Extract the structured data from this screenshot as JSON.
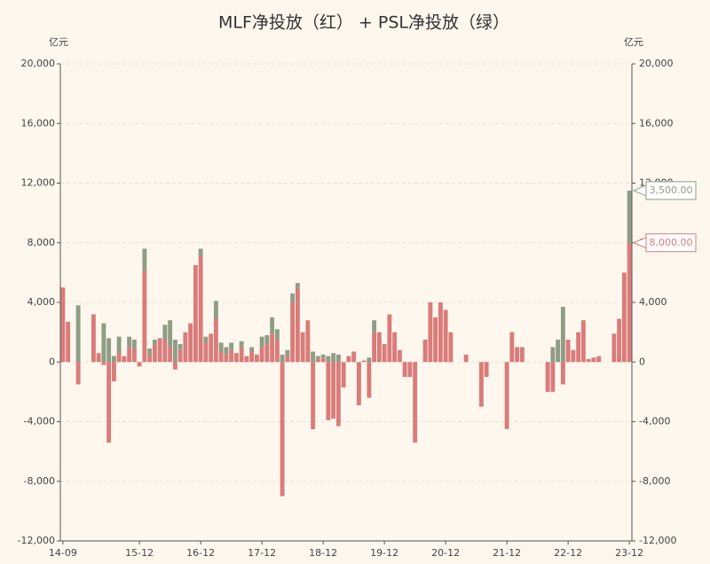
{
  "chart_data": {
    "type": "bar",
    "stacked": true,
    "title": "MLF净投放（红） + PSL净投放（绿）",
    "y_label": "亿元",
    "y2_label": "亿元",
    "categories": [
      "14-09",
      null,
      null,
      null,
      null,
      null,
      null,
      null,
      null,
      null,
      null,
      null,
      null,
      null,
      null,
      "15-12",
      null,
      null,
      null,
      null,
      null,
      null,
      null,
      null,
      null,
      null,
      null,
      "16-12",
      null,
      null,
      null,
      null,
      null,
      null,
      null,
      null,
      null,
      null,
      null,
      "17-12",
      null,
      null,
      null,
      null,
      null,
      null,
      null,
      null,
      null,
      null,
      null,
      "18-12",
      null,
      null,
      null,
      null,
      null,
      null,
      null,
      null,
      null,
      null,
      null,
      "19-12",
      null,
      null,
      null,
      null,
      null,
      null,
      null,
      null,
      null,
      null,
      null,
      "20-12",
      null,
      null,
      null,
      null,
      null,
      null,
      null,
      null,
      null,
      null,
      null,
      "21-12",
      null,
      null,
      null,
      null,
      null,
      null,
      null,
      null,
      null,
      null,
      null,
      "22-12",
      null,
      null,
      null,
      null,
      null,
      null,
      null,
      null,
      null,
      null,
      null,
      "23-12"
    ],
    "series": [
      {
        "name": "MLF净投放",
        "color": "#d97c7a",
        "values": [
          5000,
          2700,
          0,
          -1500,
          0,
          0,
          3200,
          600,
          -200,
          -5400,
          -1300,
          600,
          400,
          1000,
          900,
          -300,
          6100,
          500,
          1200,
          1600,
          1500,
          1000,
          -500,
          800,
          2000,
          2600,
          6500,
          7100,
          1300,
          1900,
          2900,
          700,
          500,
          800,
          600,
          1000,
          400,
          700,
          500,
          1000,
          1200,
          1900,
          1500,
          -9000,
          400,
          4000,
          5000,
          2000,
          2800,
          -4500,
          200,
          300,
          -3900,
          -3800,
          -4300,
          -1700,
          400,
          700,
          -2900,
          100,
          -2400,
          2000,
          2000,
          1200,
          3200,
          2000,
          800,
          -1000,
          -1000,
          -5400,
          0,
          1500,
          4000,
          3000,
          4000,
          3500,
          2000,
          0,
          0,
          500,
          0,
          0,
          -3000,
          -1000,
          0,
          0,
          0,
          -4500,
          2000,
          1000,
          1000,
          0,
          0,
          0,
          0,
          -2000,
          -2000,
          0,
          -1500,
          1500,
          800,
          2000,
          2800,
          200,
          300,
          400,
          0,
          0,
          1900,
          2900,
          6000,
          8000
        ],
        "value_labels": [
          null,
          null,
          null,
          null,
          null,
          null,
          null,
          null,
          null,
          null,
          null,
          null,
          null,
          null,
          null,
          null,
          null,
          null,
          null,
          null,
          null,
          null,
          null,
          null,
          null,
          null,
          null,
          null,
          null,
          null,
          null,
          null,
          null,
          null,
          null,
          null,
          null,
          null,
          null,
          null,
          null,
          null,
          null,
          null,
          null,
          null,
          null,
          null,
          null,
          null,
          null,
          null,
          null,
          null,
          null,
          null,
          null,
          null,
          null,
          null,
          null,
          null,
          null,
          null,
          null,
          null,
          null,
          null,
          null,
          null,
          null,
          null,
          null,
          null,
          null,
          null,
          null,
          null,
          null,
          null,
          null,
          null,
          null,
          null,
          null,
          null,
          null,
          null,
          null,
          null,
          null,
          null,
          null,
          null,
          null,
          null,
          null,
          null,
          null,
          null,
          null,
          null,
          null,
          null,
          null,
          null,
          null,
          null,
          null,
          null,
          null,
          "8,000.00"
        ]
      },
      {
        "name": "PSL净投放",
        "color": "#8f9d86",
        "values": [
          0,
          0,
          0,
          3800,
          0,
          0,
          0,
          0,
          2600,
          1600,
          400,
          1100,
          0,
          700,
          600,
          0,
          1500,
          400,
          300,
          0,
          1000,
          1800,
          1500,
          400,
          0,
          0,
          0,
          500,
          400,
          0,
          1200,
          600,
          500,
          500,
          0,
          400,
          0,
          300,
          0,
          700,
          600,
          1100,
          700,
          500,
          400,
          600,
          300,
          0,
          0,
          700,
          200,
          200,
          400,
          600,
          500,
          0,
          0,
          0,
          0,
          0,
          300,
          800,
          0,
          0,
          0,
          0,
          0,
          0,
          0,
          0,
          0,
          0,
          0,
          0,
          0,
          0,
          0,
          0,
          0,
          0,
          0,
          0,
          0,
          0,
          0,
          0,
          0,
          0,
          0,
          0,
          0,
          0,
          0,
          0,
          0,
          0,
          1000,
          1500,
          3700,
          0,
          0,
          0,
          0,
          0,
          0,
          0,
          0,
          0,
          0,
          0,
          0,
          3500
        ],
        "value_labels": [
          null,
          null,
          null,
          null,
          null,
          null,
          null,
          null,
          null,
          null,
          null,
          null,
          null,
          null,
          null,
          null,
          null,
          null,
          null,
          null,
          null,
          null,
          null,
          null,
          null,
          null,
          null,
          null,
          null,
          null,
          null,
          null,
          null,
          null,
          null,
          null,
          null,
          null,
          null,
          null,
          null,
          null,
          null,
          null,
          null,
          null,
          null,
          null,
          null,
          null,
          null,
          null,
          null,
          null,
          null,
          null,
          null,
          null,
          null,
          null,
          null,
          null,
          null,
          null,
          null,
          null,
          null,
          null,
          null,
          null,
          null,
          null,
          null,
          null,
          null,
          null,
          null,
          null,
          null,
          null,
          null,
          null,
          null,
          null,
          null,
          null,
          null,
          null,
          null,
          null,
          null,
          null,
          null,
          null,
          null,
          null,
          null,
          null,
          null,
          null,
          null,
          null,
          null,
          null,
          null,
          null,
          null,
          null,
          null,
          null,
          null,
          "3,500.00"
        ]
      }
    ],
    "ylim": [
      -12000,
      20000
    ],
    "yticks": [
      {
        "value": -12000,
        "label": "-12,000"
      },
      {
        "value": -8000,
        "label": "-8,000"
      },
      {
        "value": -4000,
        "label": "-4,000"
      },
      0,
      {
        "value": 4000,
        "label": "4,000"
      },
      {
        "value": 8000,
        "label": "8,000"
      },
      {
        "value": 12000,
        "label": "12,000"
      },
      {
        "value": 16000,
        "label": "16,000"
      },
      {
        "value": 20000,
        "label": "20,000"
      }
    ],
    "y2lim": [
      -12000,
      20000
    ],
    "y2ticks": [
      {
        "value": -12000,
        "label": "-12,000"
      },
      {
        "value": -8000,
        "label": "-8,000"
      },
      {
        "value": -4000,
        "label": "-4,000"
      },
      0,
      {
        "value": 4000,
        "label": "4,000"
      },
      {
        "value": 8000,
        "label": "8,000"
      },
      {
        "value": 12000,
        "label": "12,000"
      },
      {
        "value": 16000,
        "label": "16,000"
      },
      {
        "value": 20000,
        "label": "20,000"
      }
    ],
    "grid": true
  }
}
